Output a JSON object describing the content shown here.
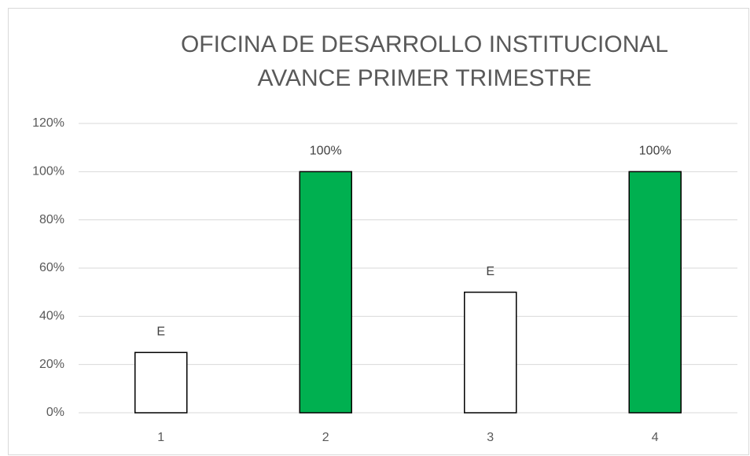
{
  "chart_data": {
    "type": "bar",
    "title": "OFICINA DE DESARROLLO INSTITUCIONAL",
    "subtitle": "AVANCE PRIMER TRIMESTRE",
    "categories": [
      "1",
      "2",
      "3",
      "4"
    ],
    "values": [
      25,
      100,
      50,
      100
    ],
    "value_labels": [
      "E",
      "100%",
      "E",
      "100%"
    ],
    "colors": [
      "#ffffff",
      "#00b050",
      "#ffffff",
      "#00b050"
    ],
    "edge_color": "#000000",
    "ylim": [
      0,
      120
    ],
    "yticks": [
      {
        "value": 0,
        "label": "0%"
      },
      {
        "value": 20,
        "label": "20%"
      },
      {
        "value": 40,
        "label": "40%"
      },
      {
        "value": 60,
        "label": "60%"
      },
      {
        "value": 80,
        "label": "80%"
      },
      {
        "value": 100,
        "label": "100%"
      },
      {
        "value": 120,
        "label": "120%"
      }
    ],
    "grid": true
  }
}
